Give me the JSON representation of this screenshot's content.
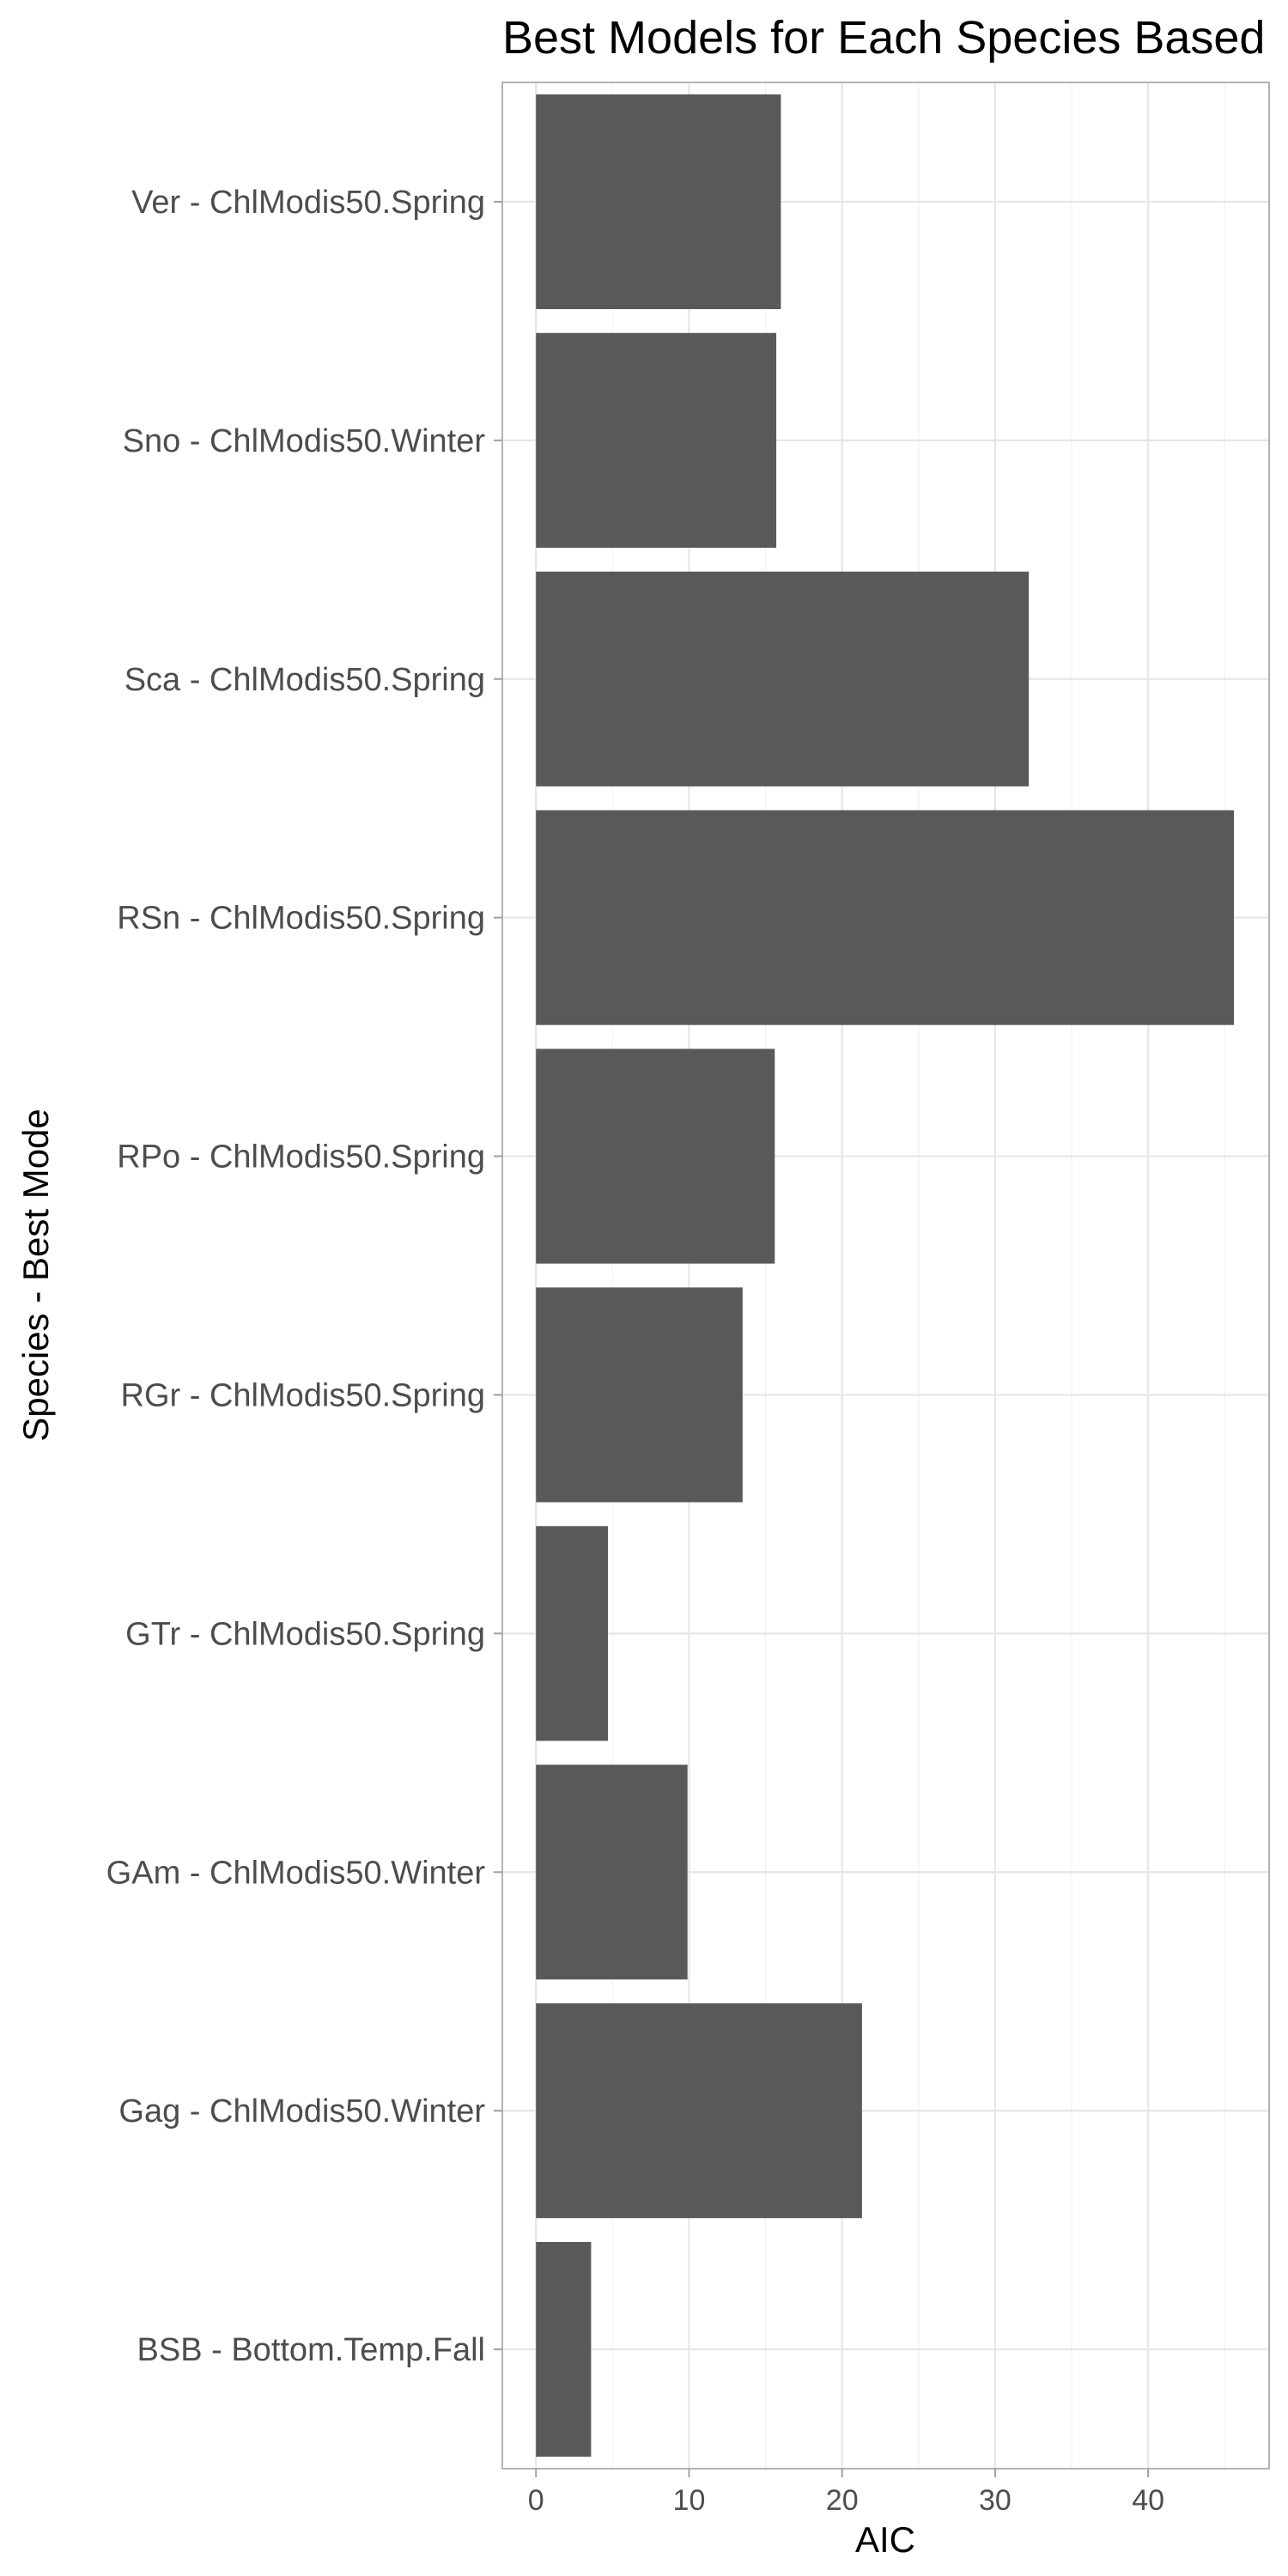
{
  "chart_data": {
    "type": "bar",
    "orientation": "horizontal",
    "title": "Best Models for Each Species Based",
    "xlabel": "AIC",
    "ylabel": "Species - Best Mode",
    "categories": [
      "Ver - ChlModis50.Spring",
      "Sno - ChlModis50.Winter",
      "Sca - ChlModis50.Spring",
      "RSn - ChlModis50.Spring",
      "RPo - ChlModis50.Spring",
      "RGr - ChlModis50.Spring",
      "GTr - ChlModis50.Spring",
      "GAm - ChlModis50.Winter",
      "Gag - ChlModis50.Winter",
      "BSB - Bottom.Temp.Fall"
    ],
    "values": [
      16.0,
      15.7,
      32.2,
      45.6,
      15.6,
      13.5,
      4.7,
      9.9,
      21.3,
      3.6
    ],
    "xlim": [
      -2.2,
      47.9
    ],
    "xticks": [
      0,
      10,
      20,
      30,
      40
    ],
    "xtick_labels": [
      "0",
      "10",
      "20",
      "30",
      "40"
    ],
    "grid": true,
    "bar_color": "#595959"
  }
}
